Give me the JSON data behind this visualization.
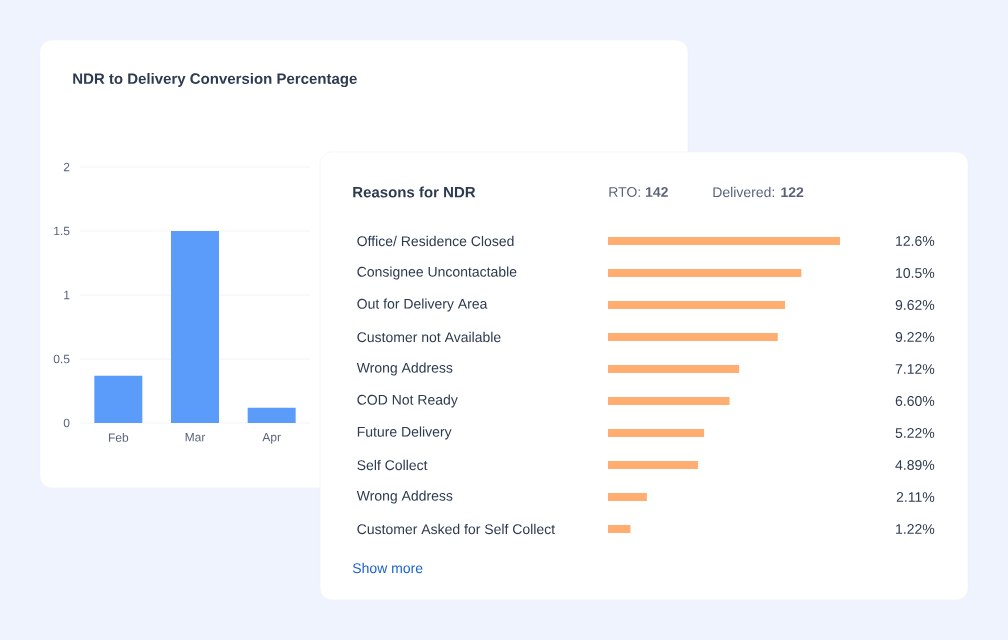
{
  "chart_data": [
    {
      "type": "bar",
      "title": "NDR to Delivery Conversion Percentage",
      "categories": [
        "Feb",
        "Mar",
        "Apr"
      ],
      "values": [
        0.37,
        1.5,
        0.12
      ],
      "color": "#5b9cfb",
      "ylim": [
        0,
        2
      ],
      "yticks": [
        0,
        0.5,
        1,
        1.5,
        2
      ],
      "grid": "y"
    },
    {
      "type": "bar",
      "orientation": "horizontal",
      "title": "Reasons for NDR",
      "color": "#ffad70",
      "categories": [
        "Office/ Residence Closed",
        "Consignee Uncontactable",
        "Out for Delivery Area",
        "Customer not Available",
        "Wrong Address",
        "COD Not Ready",
        "Future Delivery",
        "Self Collect",
        "Wrong Address",
        "Customer Asked for Self Collect"
      ],
      "values": [
        12.6,
        10.5,
        9.62,
        9.22,
        7.12,
        6.6,
        5.22,
        4.89,
        2.11,
        1.22
      ],
      "value_labels": [
        "12.6%",
        "10.5%",
        "9.62%",
        "9.22%",
        "7.12%",
        "6.60%",
        "5.22%",
        "4.89%",
        "2.11%",
        "1.22%"
      ],
      "annotations": [
        "RTO: **142**",
        "Delivered: **122**",
        "Show more"
      ]
    }
  ]
}
